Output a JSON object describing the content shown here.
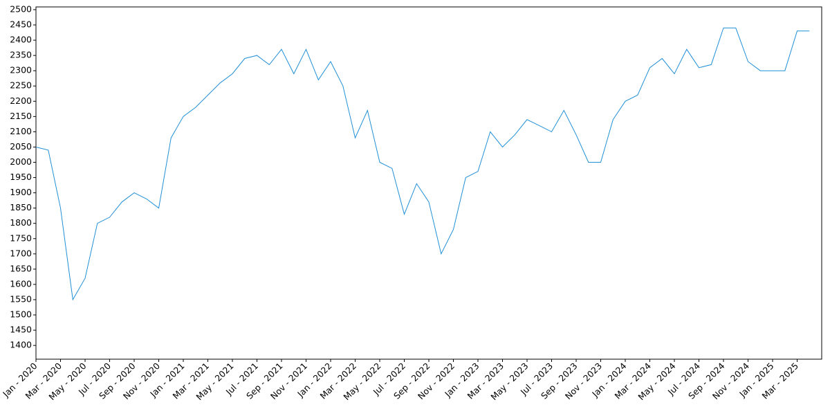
{
  "chart_data": {
    "type": "line",
    "x": [
      "2020-01",
      "2020-02",
      "2020-03",
      "2020-04",
      "2020-05",
      "2020-06",
      "2020-07",
      "2020-08",
      "2020-09",
      "2020-10",
      "2020-11",
      "2020-12",
      "2021-01",
      "2021-02",
      "2021-03",
      "2021-04",
      "2021-05",
      "2021-06",
      "2021-07",
      "2021-08",
      "2021-09",
      "2021-10",
      "2021-11",
      "2021-12",
      "2022-01",
      "2022-02",
      "2022-03",
      "2022-04",
      "2022-05",
      "2022-06",
      "2022-07",
      "2022-08",
      "2022-09",
      "2022-10",
      "2022-11",
      "2022-12",
      "2023-01",
      "2023-02",
      "2023-03",
      "2023-04",
      "2023-05",
      "2023-06",
      "2023-07",
      "2023-08",
      "2023-09",
      "2023-10",
      "2023-11",
      "2023-12",
      "2024-01",
      "2024-02",
      "2024-03",
      "2024-04",
      "2024-05",
      "2024-06",
      "2024-07",
      "2024-08",
      "2024-09",
      "2024-10",
      "2024-11",
      "2024-12",
      "2025-01",
      "2025-02",
      "2025-03",
      "2025-04"
    ],
    "series": [
      {
        "color": "#1f8fd6",
        "values": [
          2050,
          2040,
          1850,
          1550,
          1620,
          1800,
          1820,
          1870,
          1900,
          1880,
          1850,
          2080,
          2150,
          2180,
          2220,
          2260,
          2290,
          2340,
          2350,
          2320,
          2370,
          2290,
          2370,
          2270,
          2330,
          2250,
          2080,
          2170,
          2000,
          1980,
          1830,
          1930,
          1870,
          1700,
          1780,
          1950,
          1970,
          2100,
          2050,
          2090,
          2140,
          2120,
          2100,
          2170,
          2090,
          2000,
          2000,
          2140,
          2200,
          2220,
          2310,
          2340,
          2290,
          2370,
          2310,
          2320,
          2440,
          2440,
          2330,
          2300,
          2300,
          2300,
          2430,
          2430
        ]
      }
    ],
    "xlim": [
      "2020-01",
      "2025-05"
    ],
    "xticks": [
      {
        "value": "2020-01",
        "label": "Jan - 2020"
      },
      {
        "value": "2020-03",
        "label": "Mar - 2020"
      },
      {
        "value": "2020-05",
        "label": "May - 2020"
      },
      {
        "value": "2020-07",
        "label": "Jul - 2020"
      },
      {
        "value": "2020-09",
        "label": "Sep - 2020"
      },
      {
        "value": "2020-11",
        "label": "Nov - 2020"
      },
      {
        "value": "2021-01",
        "label": "Jan - 2021"
      },
      {
        "value": "2021-03",
        "label": "Mar - 2021"
      },
      {
        "value": "2021-05",
        "label": "May - 2021"
      },
      {
        "value": "2021-07",
        "label": "Jul - 2021"
      },
      {
        "value": "2021-09",
        "label": "Sep - 2021"
      },
      {
        "value": "2021-11",
        "label": "Nov - 2021"
      },
      {
        "value": "2022-01",
        "label": "Jan - 2022"
      },
      {
        "value": "2022-03",
        "label": "Mar - 2022"
      },
      {
        "value": "2022-05",
        "label": "May - 2022"
      },
      {
        "value": "2022-07",
        "label": "Jul - 2022"
      },
      {
        "value": "2022-09",
        "label": "Sep - 2022"
      },
      {
        "value": "2022-11",
        "label": "Nov - 2022"
      },
      {
        "value": "2023-01",
        "label": "Jan - 2023"
      },
      {
        "value": "2023-03",
        "label": "Mar - 2023"
      },
      {
        "value": "2023-05",
        "label": "May - 2023"
      },
      {
        "value": "2023-07",
        "label": "Jul - 2023"
      },
      {
        "value": "2023-09",
        "label": "Sep - 2023"
      },
      {
        "value": "2023-11",
        "label": "Nov - 2023"
      },
      {
        "value": "2024-01",
        "label": "Jan - 2024"
      },
      {
        "value": "2024-03",
        "label": "Mar - 2024"
      },
      {
        "value": "2024-05",
        "label": "May - 2024"
      },
      {
        "value": "2024-07",
        "label": "Jul - 2024"
      },
      {
        "value": "2024-09",
        "label": "Sep - 2024"
      },
      {
        "value": "2024-11",
        "label": "Nov - 2024"
      },
      {
        "value": "2025-01",
        "label": "Jan - 2025"
      },
      {
        "value": "2025-03",
        "label": "Mar - 2025"
      }
    ],
    "ylim": [
      1355,
      2509
    ],
    "yticks": [
      1400,
      1450,
      1500,
      1550,
      1600,
      1650,
      1700,
      1750,
      1800,
      1850,
      1900,
      1950,
      2000,
      2050,
      2100,
      2150,
      2200,
      2250,
      2300,
      2350,
      2400,
      2450,
      2500
    ],
    "grid": false
  }
}
